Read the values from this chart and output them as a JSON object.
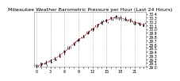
{
  "title": "Milwaukee Weather Barometric Pressure per Hour (Last 24 Hours)",
  "background_color": "#ffffff",
  "plot_bg_color": "#ffffff",
  "line_color": "#cc0000",
  "marker_color": "#000000",
  "grid_color": "#bbbbbb",
  "ylim": [
    29.0,
    30.45
  ],
  "ytick_min": 29.0,
  "ytick_max": 30.4,
  "ytick_step": 0.1,
  "hours": [
    0,
    1,
    2,
    3,
    4,
    5,
    6,
    7,
    8,
    9,
    10,
    11,
    12,
    13,
    14,
    15,
    16,
    17,
    18,
    19,
    20,
    21,
    22,
    23
  ],
  "pressure": [
    29.02,
    29.06,
    29.1,
    29.16,
    29.22,
    29.3,
    29.4,
    29.5,
    29.62,
    29.72,
    29.8,
    29.9,
    30.0,
    30.1,
    30.18,
    30.22,
    30.28,
    30.32,
    30.3,
    30.26,
    30.22,
    30.18,
    30.15,
    30.12
  ],
  "title_fontsize": 4.5,
  "tick_fontsize": 3.5,
  "grid_linestyle": "--",
  "grid_linewidth": 0.4,
  "line_linewidth": 0.6,
  "marker_size": 1.5
}
